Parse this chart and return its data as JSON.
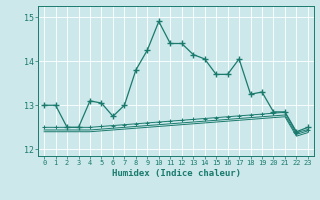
{
  "title": "",
  "xlabel": "Humidex (Indice chaleur)",
  "ylabel": "",
  "background_color": "#cce8ea",
  "line_color": "#1a7a6e",
  "grid_color": "#ffffff",
  "x_ticks": [
    0,
    1,
    2,
    3,
    4,
    5,
    6,
    7,
    8,
    9,
    10,
    11,
    12,
    13,
    14,
    15,
    16,
    17,
    18,
    19,
    20,
    21,
    22,
    23
  ],
  "y_ticks": [
    12,
    13,
    14,
    15
  ],
  "ylim": [
    11.85,
    15.25
  ],
  "xlim": [
    -0.5,
    23.5
  ],
  "line1_x": [
    0,
    1,
    2,
    3,
    4,
    5,
    6,
    7,
    8,
    9,
    10,
    11,
    12,
    13,
    14,
    15,
    16,
    17,
    18,
    19,
    20,
    21,
    22,
    23
  ],
  "line1_y": [
    13.0,
    13.0,
    12.5,
    12.5,
    13.1,
    13.05,
    12.75,
    13.0,
    13.8,
    14.25,
    14.9,
    14.4,
    14.4,
    14.15,
    14.05,
    13.7,
    13.7,
    14.05,
    13.25,
    13.3,
    12.85,
    12.85,
    12.4,
    12.5
  ],
  "line2_x": [
    0,
    1,
    2,
    3,
    4,
    5,
    6,
    7,
    8,
    9,
    10,
    11,
    12,
    13,
    14,
    15,
    16,
    17,
    18,
    19,
    20,
    21,
    22,
    23
  ],
  "line2_y": [
    12.5,
    12.5,
    12.5,
    12.5,
    12.5,
    12.52,
    12.54,
    12.56,
    12.58,
    12.6,
    12.62,
    12.64,
    12.66,
    12.68,
    12.7,
    12.72,
    12.74,
    12.76,
    12.78,
    12.8,
    12.82,
    12.84,
    12.38,
    12.45
  ],
  "line3_x": [
    0,
    1,
    2,
    3,
    4,
    5,
    6,
    7,
    8,
    9,
    10,
    11,
    12,
    13,
    14,
    15,
    16,
    17,
    18,
    19,
    20,
    21,
    22,
    23
  ],
  "line3_y": [
    12.44,
    12.44,
    12.44,
    12.44,
    12.44,
    12.46,
    12.48,
    12.5,
    12.52,
    12.54,
    12.56,
    12.58,
    12.6,
    12.62,
    12.64,
    12.66,
    12.68,
    12.7,
    12.72,
    12.74,
    12.76,
    12.78,
    12.34,
    12.42
  ],
  "line4_x": [
    0,
    1,
    2,
    3,
    4,
    5,
    6,
    7,
    8,
    9,
    10,
    11,
    12,
    13,
    14,
    15,
    16,
    17,
    18,
    19,
    20,
    21,
    22,
    23
  ],
  "line4_y": [
    12.4,
    12.4,
    12.4,
    12.4,
    12.4,
    12.42,
    12.44,
    12.46,
    12.48,
    12.5,
    12.52,
    12.54,
    12.56,
    12.58,
    12.6,
    12.62,
    12.64,
    12.66,
    12.68,
    12.7,
    12.72,
    12.74,
    12.3,
    12.38
  ]
}
